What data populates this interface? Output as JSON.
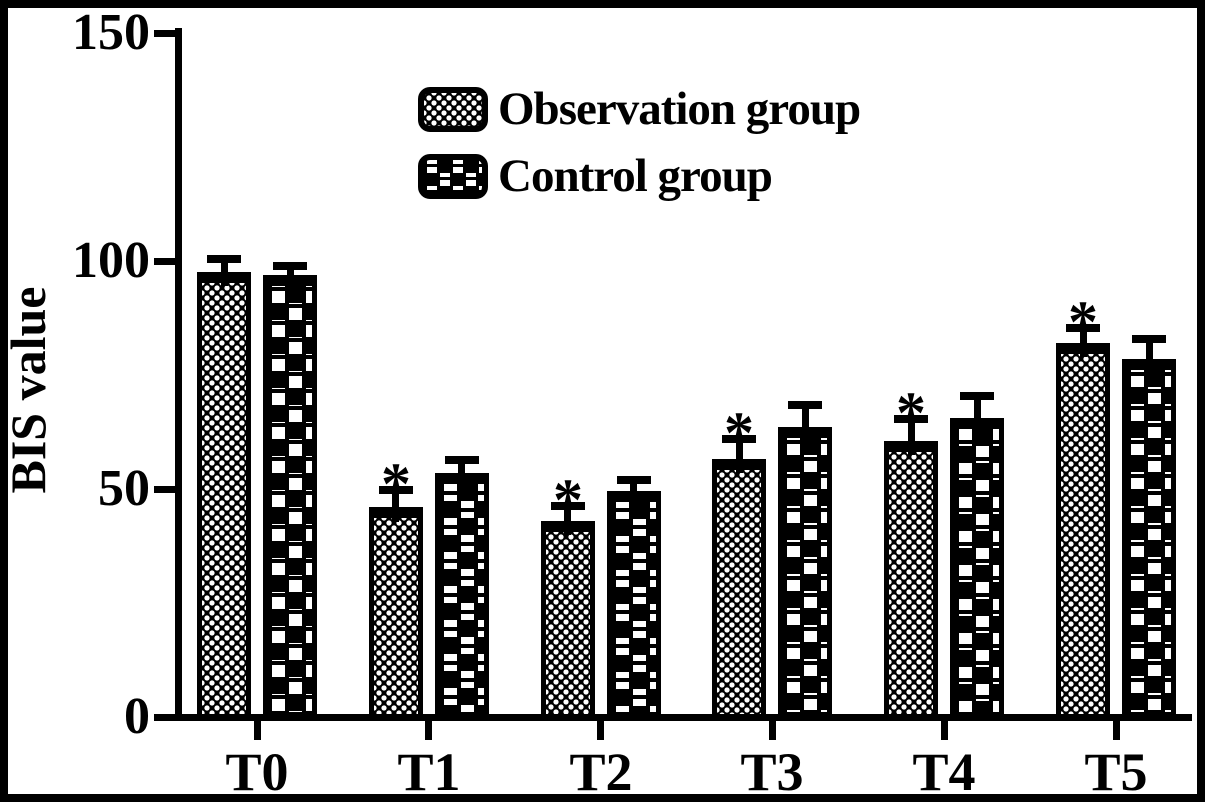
{
  "chart_data": {
    "type": "bar",
    "title": "",
    "ylabel": "BIS value",
    "xlabel": "",
    "categories": [
      "T0",
      "T1",
      "T2",
      "T3",
      "T4",
      "T5"
    ],
    "series": [
      {
        "name": "Observation group",
        "pattern": "fine-checker",
        "values": [
          97.5,
          46,
          43,
          56.5,
          60.5,
          82
        ],
        "errors": [
          2,
          3,
          2.5,
          3.5,
          4,
          2.5
        ],
        "significance": [
          "",
          "*",
          "*",
          "*",
          "*",
          "*"
        ]
      },
      {
        "name": "Control group",
        "pattern": "coarse-checker",
        "values": [
          97,
          53.5,
          49.5,
          63.5,
          65.5,
          78.5
        ],
        "errors": [
          1,
          2,
          1.5,
          4,
          4,
          3.5
        ],
        "significance": [
          "",
          "",
          "",
          "",
          "",
          ""
        ]
      }
    ],
    "ylim": [
      0,
      150
    ],
    "yticks": [
      0,
      50,
      100,
      150
    ],
    "error_bars": true,
    "grid": false,
    "legend_position": "upper-left-inside-plot",
    "colors": {
      "bar_fill": "#000000",
      "pattern_marks": "#ffffff",
      "axis": "#000000",
      "text": "#000000",
      "background": "#ffffff",
      "frame_border": "#000000"
    }
  }
}
